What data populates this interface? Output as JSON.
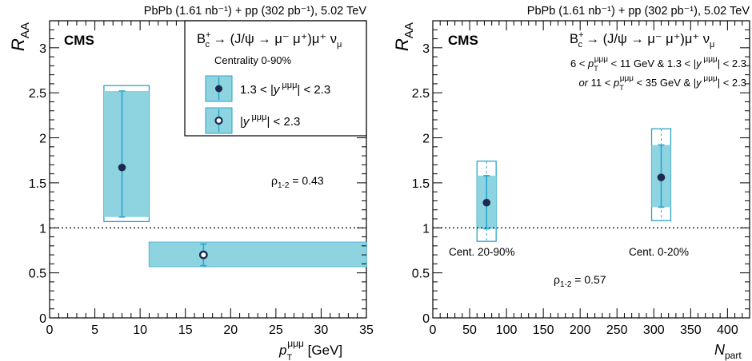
{
  "colors": {
    "marker": "#1b2a4f",
    "band_fill": "#8ed3e0",
    "band_stroke": "#2aa4cc",
    "errorbar": "#2aa4cc",
    "axis": "#000000"
  },
  "chart_data": [
    {
      "type": "scatter",
      "header": "PbPb (1.61 nb⁻¹) + pp (302 pb⁻¹), 5.02 TeV",
      "experiment_label": "CMS",
      "ylabel": "R_AA",
      "xlabel": "p_T^μμμ [GeV]",
      "xlim": [
        0,
        35
      ],
      "ylim": [
        0,
        3.3
      ],
      "xticks": [
        0,
        5,
        10,
        15,
        20,
        25,
        30,
        35
      ],
      "yticks": [
        0,
        0.5,
        1,
        1.5,
        2,
        2.5,
        3
      ],
      "reference_line": 1,
      "legend": {
        "placement": "top-right",
        "title": "B_c⁺ → (J/ψ → μ⁻μ⁺)μ⁺ν_μ",
        "subtitle": "Centrality 0-90%",
        "entries": [
          "1.3 < |y^μμμ| < 2.3",
          "|y^μμμ| < 2.3"
        ]
      },
      "annotation": "ρ₁₋₂ = 0.43",
      "points": [
        {
          "x": 8.0,
          "x_low": 6.0,
          "x_high": 11.0,
          "y": 1.67,
          "stat_low": 1.12,
          "stat_high": 2.52,
          "syst_low": 1.07,
          "syst_high": 2.58,
          "fill_low": 1.12,
          "fill_high": 2.52,
          "marker": "filled"
        },
        {
          "x": 17.0,
          "x_low": 11.0,
          "x_high": 35.0,
          "y": 0.7,
          "stat_low": 0.58,
          "stat_high": 0.82,
          "syst_low": 0.57,
          "syst_high": 0.84,
          "fill_low": 0.57,
          "fill_high": 0.84,
          "marker": "open"
        }
      ]
    },
    {
      "type": "scatter",
      "header": "PbPb (1.61 nb⁻¹) + pp (302 pb⁻¹), 5.02 TeV",
      "experiment_label": "CMS",
      "ylabel": "R_AA",
      "xlabel": "N_part",
      "xlim": [
        0,
        430
      ],
      "ylim": [
        0,
        3.3
      ],
      "xticks": [
        0,
        50,
        100,
        150,
        200,
        250,
        300,
        350,
        400
      ],
      "yticks": [
        0,
        0.5,
        1,
        1.5,
        2,
        2.5,
        3
      ],
      "reference_line": 1,
      "title": "B_c⁺ → (J/ψ → μ⁻μ⁺)μ⁺ν_μ",
      "selection_line1": "6 < p_T^μμμ < 11 GeV & 1.3 < |y^μμμ| < 2.3",
      "selection_line2": "or 11 < p_T^μμμ < 35 GeV & |y^μμμ| < 2.3",
      "annotation": "ρ₁₋₂ = 0.57",
      "points": [
        {
          "x": 73,
          "x_low": 60,
          "x_high": 86,
          "y": 1.28,
          "stat_low": 0.99,
          "stat_high": 1.58,
          "syst_low": 0.85,
          "syst_high": 1.74,
          "fill_low": 0.99,
          "fill_high": 1.58,
          "marker": "filled",
          "label": "Cent. 20-90%"
        },
        {
          "x": 310,
          "x_low": 297,
          "x_high": 323,
          "y": 1.56,
          "stat_low": 1.23,
          "stat_high": 1.92,
          "syst_low": 1.08,
          "syst_high": 2.1,
          "fill_low": 1.23,
          "fill_high": 1.92,
          "marker": "filled",
          "label": "Cent. 0-20%"
        }
      ]
    }
  ]
}
